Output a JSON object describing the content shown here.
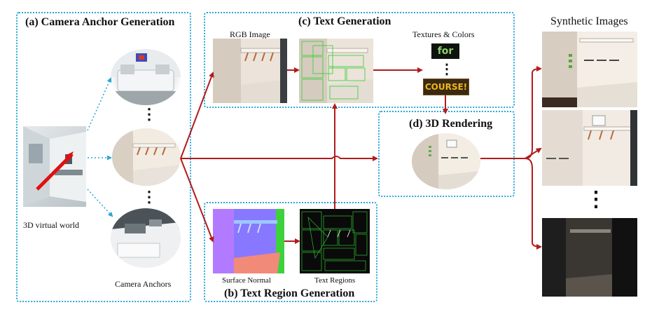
{
  "panels": {
    "camera_anchor": "(a) Camera Anchor Generation",
    "text_region": "(b) Text Region Generation",
    "text_generation": "(c) Text Generation",
    "rendering": "(d) 3D Rendering"
  },
  "labels": {
    "virtual_world": "3D virtual world",
    "camera_anchors": "Camera Anchors",
    "rgb_image": "RGB Image",
    "textures_colors": "Textures & Colors",
    "surface_normal": "Surface Normal",
    "text_regions": "Text Regions",
    "synthetic_images": "Synthetic Images"
  },
  "texture_words": [
    "for",
    "COURSE!"
  ],
  "ellipsis": "⋮",
  "colors": {
    "panel_border": "#2aa6d6",
    "flow_arrow": "#b31b1b",
    "anchor_arrow": "#2aa6d6"
  }
}
